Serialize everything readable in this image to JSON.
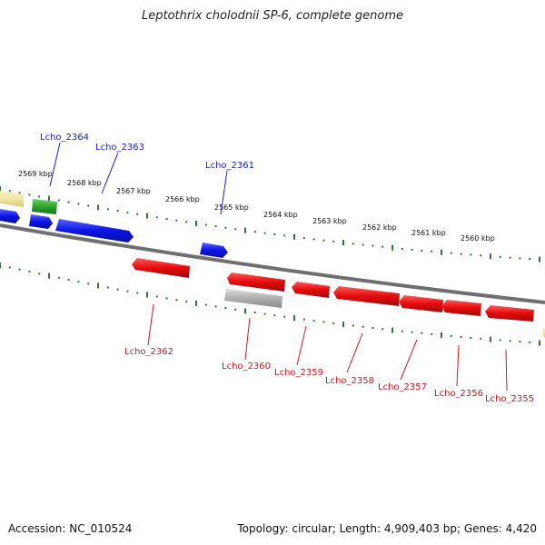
{
  "title": "Leptothrix cholodnii SP-6, complete genome",
  "footer": {
    "accession": "Accession: NC_010524",
    "summary": "Topology: circular; Length: 4,909,403 bp; Genes: 4,420"
  },
  "colors": {
    "forward_gene": "#0a14e6",
    "reverse_gene": "#e60a0a",
    "rna_gene": "#2aa52a",
    "pseudo_gene": "#b0b0b0",
    "other_gene": "#f0e4a0",
    "tick": "#2a7a2a",
    "backbone": "#7a7a7a"
  },
  "ruler": {
    "labels": [
      "2569 kbp",
      "2568 kbp",
      "2567 kbp",
      "2566 kbp",
      "2565 kbp",
      "2564 kbp",
      "2563 kbp",
      "2562 kbp",
      "2561 kbp",
      "2560 kbp"
    ]
  },
  "genes": {
    "forward_labeled": [
      "Lcho_2364",
      "Lcho_2363",
      "Lcho_2361"
    ],
    "reverse_labeled": [
      "Lcho_2362",
      "Lcho_2360",
      "Lcho_2359",
      "Lcho_2358",
      "Lcho_2357",
      "Lcho_2356",
      "Lcho_2355"
    ]
  }
}
